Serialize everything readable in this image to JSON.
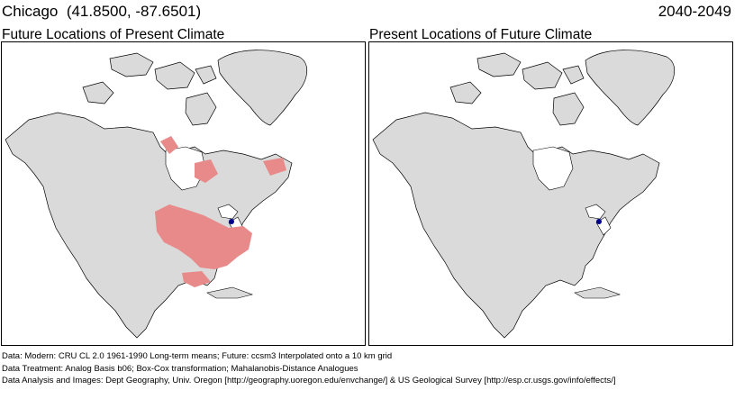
{
  "header": {
    "location": "Chicago  (41.8500, -87.6501)",
    "period": "2040-2049"
  },
  "panels": {
    "left_title": "Future Locations of Present Climate",
    "right_title": "Present Locations of Future Climate"
  },
  "colors": {
    "analog_highlight": "#e88a8a",
    "land": "#dadada",
    "water": "#ffffff",
    "borders": "#000000",
    "location_marker": "#00008b"
  },
  "notes": {
    "data": "Data:  Modern: CRU CL 2.0 1961-1990 Long-term means; Future: ccsm3 Interpolated onto a 10 km grid",
    "treatment": "Data Treatment:  Analog Basis b06; Box-Cox transformation; Mahalanobis-Distance Analogues",
    "analysis": "Data Analysis and Images:  Dept Geography, Univ. Oregon [http://geography.uoregon.edu/envchange/] & US Geological Survey [http://esp.cr.usgs.gov/info/effects/]"
  }
}
